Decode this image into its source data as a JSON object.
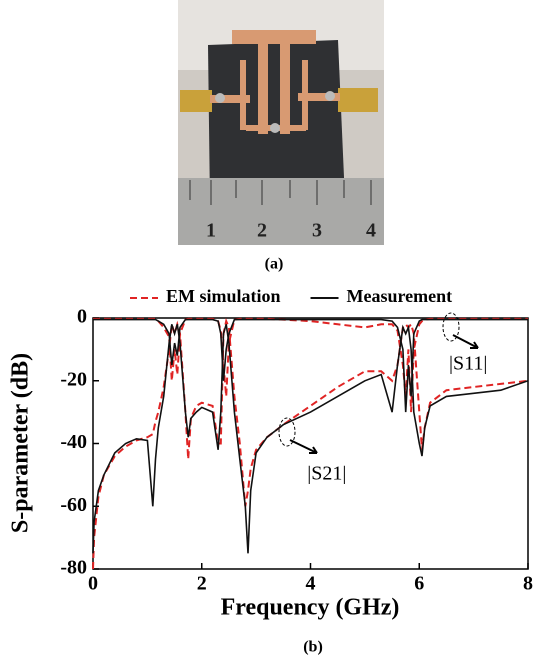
{
  "photo": {
    "ruler_labels": [
      "1",
      "2",
      "3",
      "4"
    ],
    "caption": "(a)"
  },
  "chart_data": {
    "type": "line",
    "caption": "(b)",
    "xlabel": "Frequency (GHz)",
    "ylabel": "S-parameter (dB)",
    "xlim": [
      0,
      8
    ],
    "xticks": [
      0,
      2,
      4,
      6,
      8
    ],
    "ylim": [
      -80,
      0
    ],
    "yticks": [
      -80,
      -60,
      -40,
      -20,
      0
    ],
    "x": [
      0,
      0.02,
      0.1,
      0.2,
      0.4,
      0.6,
      0.8,
      1.0,
      1.1,
      1.15,
      1.2,
      1.3,
      1.4,
      1.45,
      1.5,
      1.55,
      1.6,
      1.7,
      1.75,
      1.8,
      1.9,
      2.0,
      2.2,
      2.3,
      2.35,
      2.4,
      2.45,
      2.5,
      2.6,
      2.7,
      2.8,
      2.85,
      2.9,
      3.0,
      3.2,
      3.5,
      4.0,
      4.5,
      5.0,
      5.3,
      5.5,
      5.6,
      5.7,
      5.75,
      5.8,
      5.85,
      5.9,
      6.0,
      6.05,
      6.1,
      6.2,
      6.5,
      7.0,
      7.5,
      8.0
    ],
    "series": [
      {
        "name": "EM simulation",
        "color": "#e02424",
        "dash": true,
        "values": [
          -80,
          -70,
          -57,
          -50,
          -44,
          -41,
          -39,
          -38,
          -37,
          -33,
          -30,
          -22,
          -10,
          -2,
          -5,
          -2,
          -5,
          -30,
          -45,
          -32,
          -28,
          -27,
          -28,
          -40,
          -40,
          -5,
          -1,
          -3,
          -25,
          -40,
          -60,
          -55,
          -48,
          -42,
          -38,
          -34,
          -28,
          -22,
          -17,
          -17,
          -20,
          -15,
          -3,
          -2,
          -3,
          -2,
          -5,
          -30,
          -42,
          -35,
          -27,
          -23,
          -22,
          -21,
          -20
        ]
      },
      {
        "color": "#e02424",
        "dash": true,
        "values": [
          -0.3,
          -0.3,
          -0.3,
          -0.3,
          -0.3,
          -0.3,
          -0.3,
          -0.3,
          -0.3,
          -0.3,
          -1,
          -3,
          -6,
          -20,
          -10,
          -18,
          -5,
          -0.5,
          -0.3,
          -0.3,
          -0.3,
          -0.3,
          -0.3,
          -1,
          -4,
          -15,
          -25,
          -8,
          -0.5,
          -0.3,
          -0.3,
          -0.3,
          -0.3,
          -0.3,
          -0.3,
          -0.5,
          -1,
          -2,
          -3,
          -2,
          -2,
          -4,
          -15,
          -25,
          -10,
          -30,
          -10,
          -2,
          -1,
          -0.5,
          -0.3,
          -0.3,
          -0.3,
          -0.3,
          -0.3
        ]
      },
      {
        "name": "Measurement",
        "color": "#111111",
        "dash": false,
        "values": [
          -75,
          -65,
          -55,
          -50,
          -43,
          -40,
          -38.5,
          -39,
          -60,
          -45,
          -35,
          -25,
          -8,
          -2,
          -5,
          -2,
          -8,
          -30,
          -38,
          -32,
          -30,
          -28.5,
          -30,
          -42,
          -30,
          -5,
          -2,
          -8,
          -30,
          -45,
          -60,
          -75,
          -55,
          -43,
          -38,
          -34,
          -30,
          -25,
          -20,
          -18,
          -30,
          -15,
          -3,
          -5,
          -3,
          -10,
          -30,
          -40,
          -44,
          -35,
          -28,
          -25,
          -24,
          -23,
          -20
        ]
      },
      {
        "color": "#111111",
        "dash": false,
        "values": [
          -0.5,
          -0.5,
          -0.5,
          -0.5,
          -0.5,
          -0.5,
          -0.5,
          -0.5,
          -0.5,
          -0.5,
          -1,
          -2,
          -5,
          -15,
          -8,
          -12,
          -3,
          -0.5,
          -0.5,
          -0.5,
          -0.5,
          -0.5,
          -0.5,
          -1,
          -5,
          -20,
          -10,
          -5,
          -0.5,
          -0.5,
          -0.5,
          -0.5,
          -0.5,
          -0.5,
          -0.5,
          -0.5,
          -0.5,
          -0.5,
          -0.5,
          -0.5,
          -1,
          -3,
          -10,
          -30,
          -15,
          -25,
          -5,
          -1,
          -0.5,
          -0.5,
          -0.5,
          -0.5,
          -0.5,
          -0.5,
          -0.5
        ]
      }
    ],
    "annotations": [
      {
        "text": "|S11|",
        "x": 6.9,
        "y": -15
      },
      {
        "text": "|S21|",
        "x": 4.3,
        "y": -50
      }
    ]
  }
}
